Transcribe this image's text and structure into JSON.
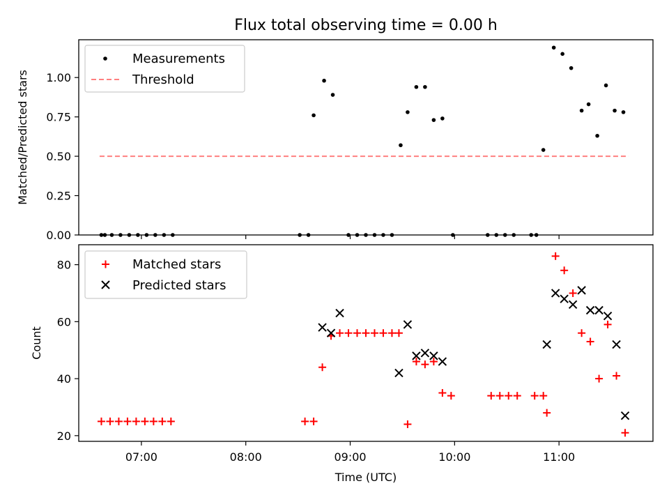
{
  "chart_data": [
    {
      "type": "scatter",
      "title": "Flux total observing time = 0.00 h",
      "xlabel": "",
      "ylabel": "Matched/Predicted stars",
      "ylim": [
        0,
        1.24
      ],
      "xlim": [
        "06:24",
        "11:54"
      ],
      "yticks": [
        "0.00",
        "0.25",
        "0.50",
        "0.75",
        "1.00"
      ],
      "ytick_values": [
        0,
        0.25,
        0.5,
        0.75,
        1.0
      ],
      "grid": false,
      "legend": "top-left",
      "legend_entries": [
        "Measurements",
        "Threshold"
      ],
      "threshold": {
        "name": "Threshold",
        "value": 0.5,
        "x": [
          "06:36",
          "11:40"
        ],
        "color": "#ff7f7f",
        "style": "dashed"
      },
      "series": [
        {
          "name": "Measurements",
          "marker": "dot",
          "color": "#000000",
          "x": [
            "06:37",
            "06:39",
            "06:43",
            "06:48",
            "06:53",
            "06:58",
            "07:03",
            "07:08",
            "07:13",
            "07:18",
            "08:31",
            "08:36",
            "08:39",
            "08:45",
            "08:50",
            "08:59",
            "09:04",
            "09:09",
            "09:14",
            "09:19",
            "09:24",
            "09:29",
            "09:33",
            "09:38",
            "09:43",
            "09:48",
            "09:53",
            "09:59",
            "10:19",
            "10:24",
            "10:29",
            "10:34",
            "10:44",
            "10:47",
            "10:51",
            "10:57",
            "11:02",
            "11:07",
            "11:13",
            "11:17",
            "11:22",
            "11:27",
            "11:32",
            "11:37"
          ],
          "y": [
            0,
            0,
            0,
            0,
            0,
            0,
            0,
            0,
            0,
            0,
            0,
            0,
            0.76,
            0.98,
            0.89,
            0,
            0,
            0,
            0,
            0,
            0,
            0.57,
            0.78,
            0.94,
            0.94,
            0.73,
            0.74,
            0,
            0,
            0,
            0,
            0,
            0,
            0,
            0.54,
            1.19,
            1.15,
            1.06,
            0.79,
            0.83,
            0.63,
            0.95,
            0.79,
            0.78
          ]
        }
      ]
    },
    {
      "type": "scatter",
      "title": "",
      "xlabel": "Time (UTC)",
      "ylabel": "Count",
      "ylim": [
        18,
        87
      ],
      "xlim": [
        "06:24",
        "11:54"
      ],
      "xticks": [
        "07:00",
        "08:00",
        "09:00",
        "10:00",
        "11:00"
      ],
      "yticks": [
        "20",
        "40",
        "60",
        "80"
      ],
      "ytick_values": [
        20,
        40,
        60,
        80
      ],
      "grid": false,
      "legend": "top-left",
      "legend_entries": [
        "Matched stars",
        "Predicted stars"
      ],
      "series": [
        {
          "name": "Matched stars",
          "marker": "plus",
          "color": "#ff0000",
          "x": [
            "06:37",
            "06:42",
            "06:47",
            "06:52",
            "06:57",
            "07:02",
            "07:07",
            "07:12",
            "07:17",
            "08:34",
            "08:39",
            "08:44",
            "08:49",
            "08:54",
            "08:59",
            "09:04",
            "09:09",
            "09:14",
            "09:19",
            "09:24",
            "09:28",
            "09:33",
            "09:38",
            "09:43",
            "09:48",
            "09:53",
            "09:58",
            "10:21",
            "10:26",
            "10:31",
            "10:36",
            "10:46",
            "10:51",
            "10:53",
            "10:58",
            "11:03",
            "11:08",
            "11:13",
            "11:18",
            "11:23",
            "11:28",
            "11:33",
            "11:38"
          ],
          "y": [
            25,
            25,
            25,
            25,
            25,
            25,
            25,
            25,
            25,
            25,
            25,
            44,
            55,
            56,
            56,
            56,
            56,
            56,
            56,
            56,
            56,
            24,
            46,
            45,
            46,
            35,
            34,
            34,
            34,
            34,
            34,
            34,
            34,
            28,
            83,
            78,
            70,
            56,
            53,
            40,
            59,
            41,
            21
          ]
        },
        {
          "name": "Predicted stars",
          "marker": "x",
          "color": "#000000",
          "x": [
            "08:44",
            "08:49",
            "08:54",
            "09:28",
            "09:33",
            "09:38",
            "09:43",
            "09:48",
            "09:53",
            "10:53",
            "10:58",
            "11:03",
            "11:08",
            "11:13",
            "11:18",
            "11:23",
            "11:28",
            "11:33",
            "11:38"
          ],
          "y": [
            58,
            56,
            63,
            42,
            59,
            48,
            49,
            48,
            46,
            52,
            70,
            68,
            66,
            71,
            64,
            64,
            62,
            52,
            27
          ]
        }
      ]
    }
  ]
}
